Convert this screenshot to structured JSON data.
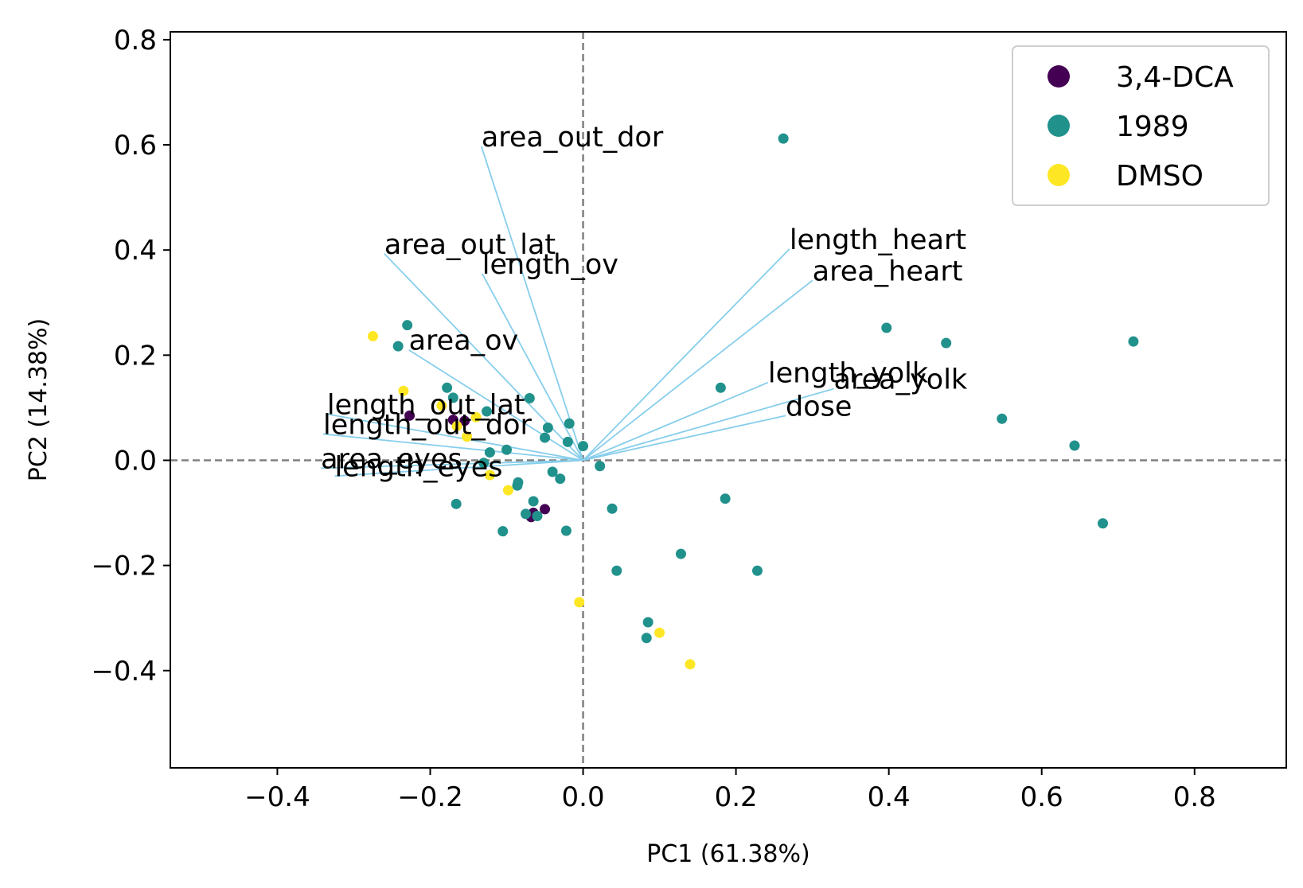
{
  "chart_data": {
    "type": "scatter",
    "xlabel": "PC1 (61.38%)",
    "ylabel": "PC2 (14.38%)",
    "xlim": [
      -0.54,
      0.92
    ],
    "ylim": [
      -0.585,
      0.815
    ],
    "xticks": [
      -0.4,
      -0.2,
      0.0,
      0.2,
      0.4,
      0.6,
      0.8
    ],
    "yticks": [
      -0.4,
      -0.2,
      0.0,
      0.2,
      0.4,
      0.6,
      0.8
    ],
    "xtick_labels": [
      "−0.4",
      "−0.2",
      "0.0",
      "0.2",
      "0.4",
      "0.6",
      "0.8"
    ],
    "ytick_labels": [
      "−0.4",
      "−0.2",
      "0.0",
      "0.2",
      "0.4",
      "0.6",
      "0.8"
    ],
    "reference_lines": {
      "x": 0.0,
      "y": 0.0,
      "style": "dashed",
      "color": "#808080"
    },
    "grid": false,
    "legend_position": "top-right",
    "series": [
      {
        "name": "3,4-DCA",
        "color": "#440154",
        "points": [
          [
            -0.227,
            0.085
          ],
          [
            -0.17,
            0.077
          ],
          [
            -0.155,
            0.075
          ],
          [
            -0.05,
            -0.093
          ],
          [
            -0.068,
            -0.108
          ],
          [
            -0.065,
            -0.1
          ]
        ]
      },
      {
        "name": "1989",
        "color": "#21918c",
        "points": [
          [
            0.262,
            0.612
          ],
          [
            -0.23,
            0.257
          ],
          [
            -0.242,
            0.217
          ],
          [
            -0.178,
            0.138
          ],
          [
            -0.17,
            0.119
          ],
          [
            -0.126,
            0.093
          ],
          [
            -0.07,
            0.118
          ],
          [
            -0.046,
            0.062
          ],
          [
            -0.018,
            0.07
          ],
          [
            -0.05,
            0.043
          ],
          [
            -0.02,
            0.035
          ],
          [
            0.0,
            0.027
          ],
          [
            -0.1,
            0.02
          ],
          [
            -0.122,
            0.015
          ],
          [
            -0.13,
            -0.005
          ],
          [
            0.022,
            -0.011
          ],
          [
            -0.04,
            -0.022
          ],
          [
            -0.03,
            -0.035
          ],
          [
            -0.085,
            -0.042
          ],
          [
            -0.086,
            -0.048
          ],
          [
            -0.166,
            -0.083
          ],
          [
            -0.065,
            -0.078
          ],
          [
            -0.075,
            -0.102
          ],
          [
            -0.06,
            -0.106
          ],
          [
            -0.105,
            -0.135
          ],
          [
            -0.022,
            -0.134
          ],
          [
            0.038,
            -0.092
          ],
          [
            0.186,
            -0.073
          ],
          [
            0.128,
            -0.178
          ],
          [
            0.044,
            -0.21
          ],
          [
            0.228,
            -0.21
          ],
          [
            0.085,
            -0.308
          ],
          [
            0.083,
            -0.338
          ],
          [
            0.18,
            0.138
          ],
          [
            0.397,
            0.252
          ],
          [
            0.475,
            0.223
          ],
          [
            0.72,
            0.226
          ],
          [
            0.548,
            0.079
          ],
          [
            0.643,
            0.028
          ],
          [
            0.68,
            -0.12
          ]
        ]
      },
      {
        "name": "DMSO",
        "color": "#fde725",
        "points": [
          [
            -0.275,
            0.236
          ],
          [
            -0.235,
            0.132
          ],
          [
            -0.185,
            0.104
          ],
          [
            -0.14,
            0.082
          ],
          [
            -0.165,
            0.065
          ],
          [
            -0.152,
            0.045
          ],
          [
            -0.122,
            -0.028
          ],
          [
            -0.098,
            -0.057
          ],
          [
            -0.005,
            -0.27
          ],
          [
            0.1,
            -0.328
          ],
          [
            0.14,
            -0.388
          ]
        ]
      }
    ],
    "loadings": [
      {
        "name": "area_out_dor",
        "x": -0.133,
        "y": 0.597
      },
      {
        "name": "area_out_lat",
        "x": -0.26,
        "y": 0.393
      },
      {
        "name": "length_ov",
        "x": -0.132,
        "y": 0.355
      },
      {
        "name": "area_ov",
        "x": -0.228,
        "y": 0.21
      },
      {
        "name": "length_out_lat",
        "x": -0.335,
        "y": 0.088
      },
      {
        "name": "length_out_dor",
        "x": -0.34,
        "y": 0.05
      },
      {
        "name": "area_eyes",
        "x": -0.343,
        "y": -0.015
      },
      {
        "name": "length_eyes",
        "x": -0.325,
        "y": -0.03
      },
      {
        "name": "length_heart",
        "x": 0.27,
        "y": 0.402
      },
      {
        "name": "area_heart",
        "x": 0.3,
        "y": 0.342
      },
      {
        "name": "length_yolk",
        "x": 0.242,
        "y": 0.148
      },
      {
        "name": "area_yolk",
        "x": 0.328,
        "y": 0.136
      },
      {
        "name": "dose",
        "x": 0.265,
        "y": 0.085
      }
    ]
  }
}
